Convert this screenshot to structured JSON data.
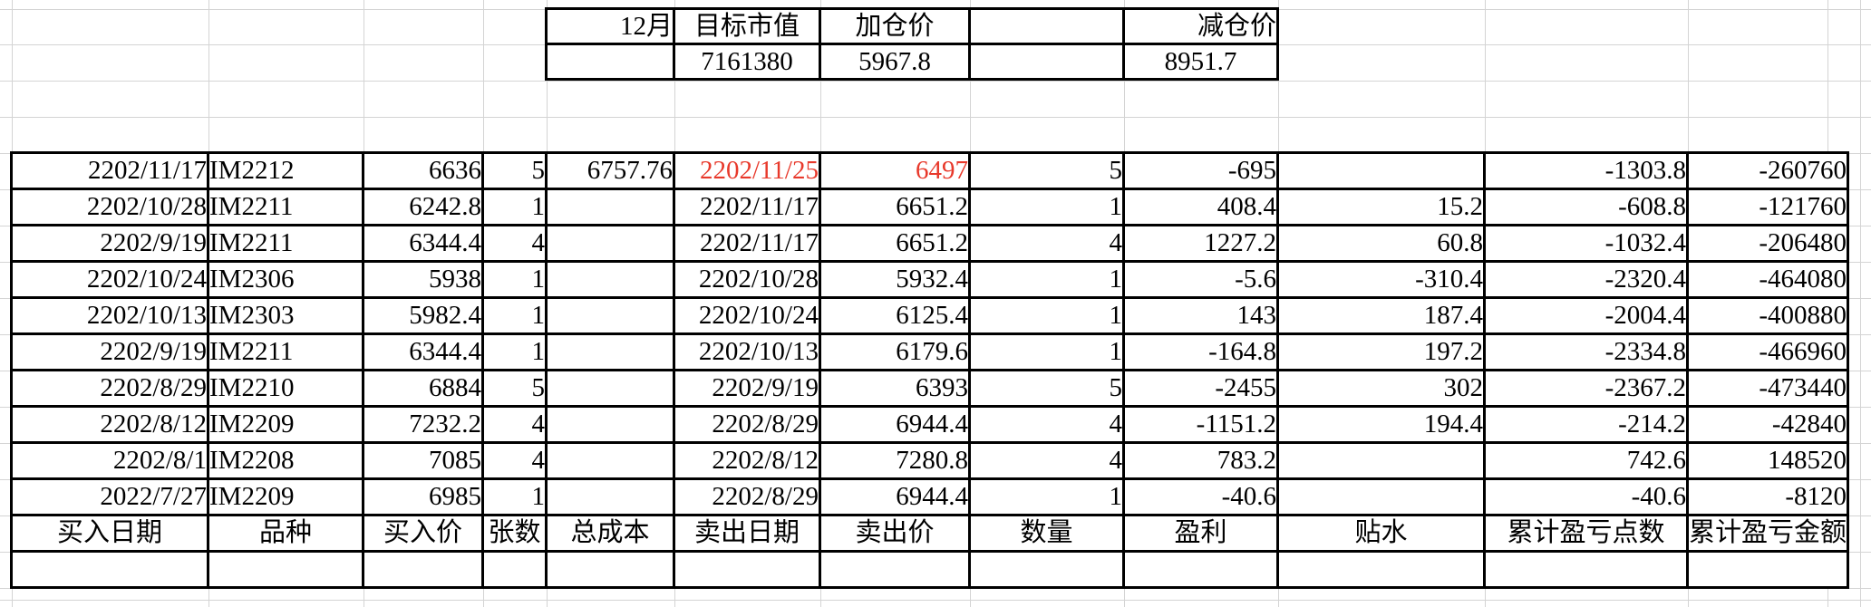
{
  "summary_table": {
    "row1": [
      "12月",
      "目标市值",
      "加仓价",
      "",
      "减仓价"
    ],
    "row2": [
      "",
      "7161380",
      "5967.8",
      "",
      "8951.7"
    ]
  },
  "trades_table": {
    "column_headers": [
      "买入日期",
      "品种",
      "买入价",
      "张数",
      "总成本",
      "卖出日期",
      "卖出价",
      "数量",
      "盈利",
      "贴水",
      "累计盈亏点数",
      "累计盈亏金额"
    ],
    "rows": [
      [
        "2202/11/17",
        "IM2212",
        "6636",
        "5",
        "6757.76",
        "2202/11/25",
        "6497",
        "5",
        "-695",
        "",
        "-1303.8",
        "-260760"
      ],
      [
        "2202/10/28",
        "IM2211",
        "6242.8",
        "1",
        "",
        "2202/11/17",
        "6651.2",
        "1",
        "408.4",
        "15.2",
        "-608.8",
        "-121760"
      ],
      [
        "2202/9/19",
        "IM2211",
        "6344.4",
        "4",
        "",
        "2202/11/17",
        "6651.2",
        "4",
        "1227.2",
        "60.8",
        "-1032.4",
        "-206480"
      ],
      [
        "2202/10/24",
        "IM2306",
        "5938",
        "1",
        "",
        "2202/10/28",
        "5932.4",
        "1",
        "-5.6",
        "-310.4",
        "-2320.4",
        "-464080"
      ],
      [
        "2202/10/13",
        "IM2303",
        "5982.4",
        "1",
        "",
        "2202/10/24",
        "6125.4",
        "1",
        "143",
        "187.4",
        "-2004.4",
        "-400880"
      ],
      [
        "2202/9/19",
        "IM2211",
        "6344.4",
        "1",
        "",
        "2202/10/13",
        "6179.6",
        "1",
        "-164.8",
        "197.2",
        "-2334.8",
        "-466960"
      ],
      [
        "2202/8/29",
        "IM2210",
        "6884",
        "5",
        "",
        "2202/9/19",
        "6393",
        "5",
        "-2455",
        "302",
        "-2367.2",
        "-473440"
      ],
      [
        "2202/8/12",
        "IM2209",
        "7232.2",
        "4",
        "",
        "2202/8/29",
        "6944.4",
        "4",
        "-1151.2",
        "194.4",
        "-214.2",
        "-42840"
      ],
      [
        "2202/8/1",
        "IM2208",
        "7085",
        "4",
        "",
        "2202/8/12",
        "7280.8",
        "4",
        "783.2",
        "",
        "742.6",
        "148520"
      ],
      [
        "2022/7/27",
        "IM2209",
        "6985",
        "1",
        "",
        "2202/8/29",
        "6944.4",
        "1",
        "-40.6",
        "",
        "-40.6",
        "-8120"
      ]
    ],
    "red_cells": [
      [
        0,
        5
      ],
      [
        0,
        6
      ]
    ]
  },
  "colors": {
    "highlight_red": "#e8392b",
    "grid_gray": "#d4d4d4",
    "table_border": "#000000"
  }
}
